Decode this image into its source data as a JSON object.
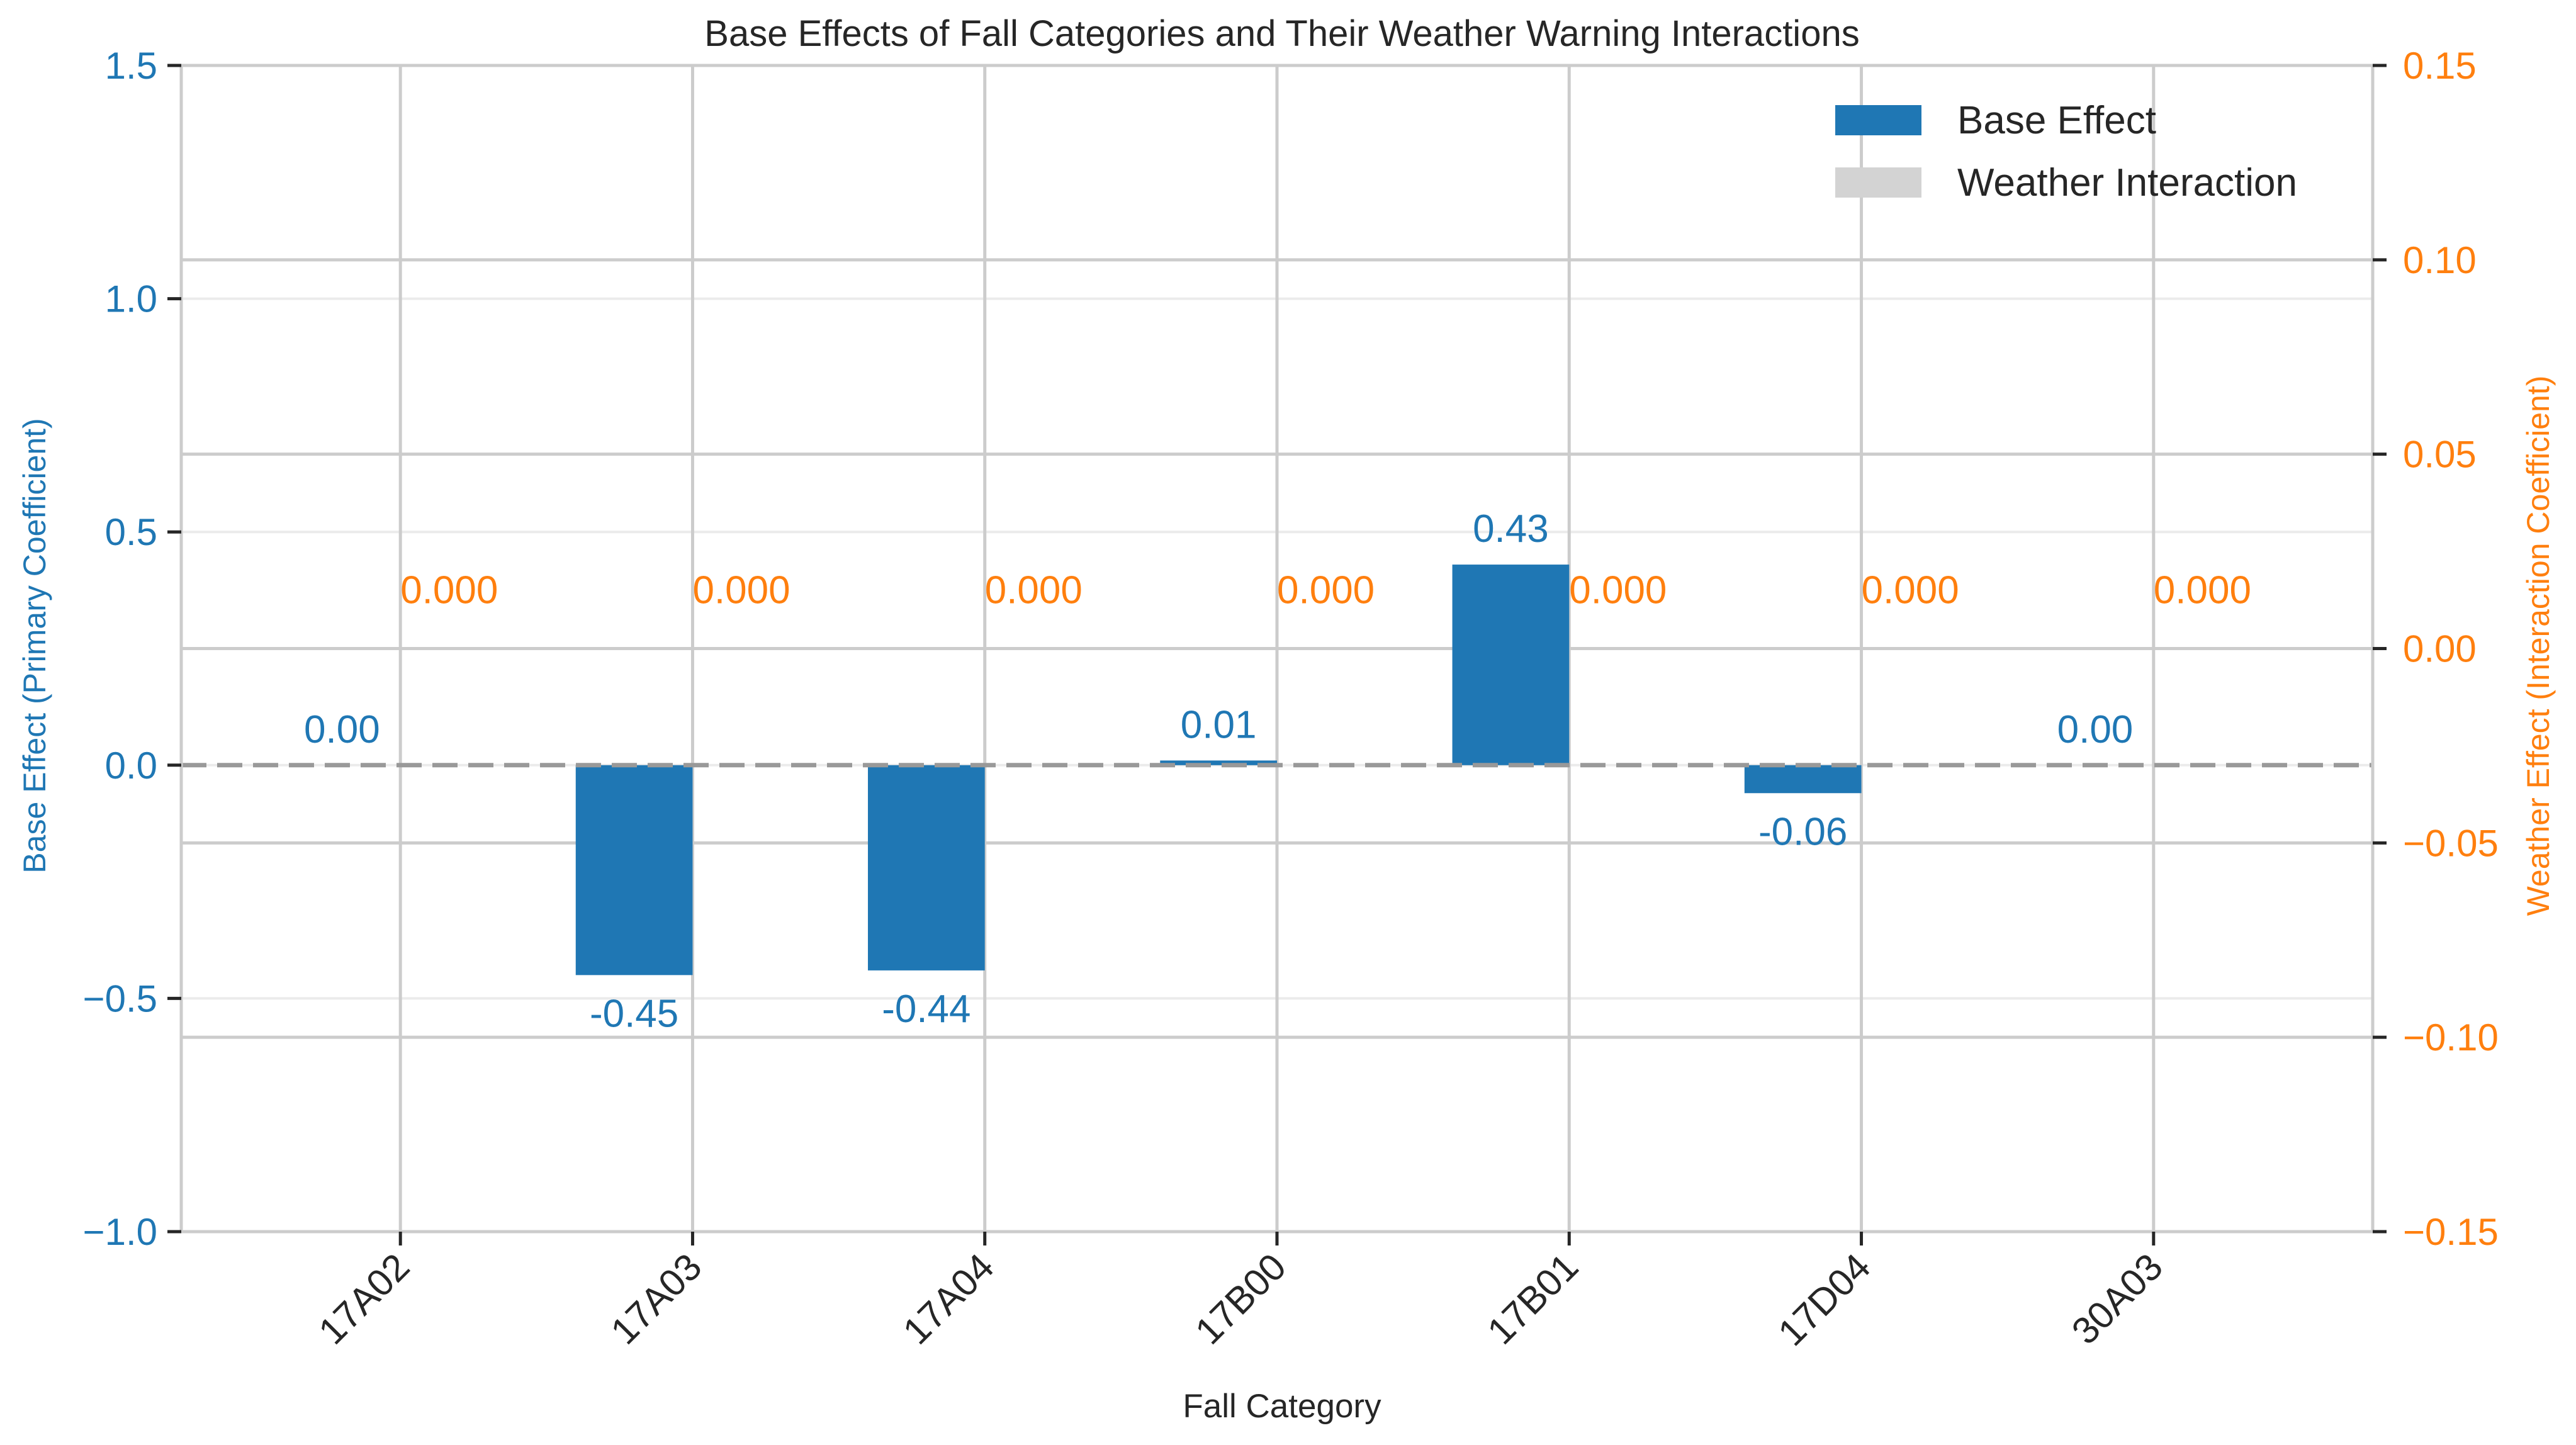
{
  "chart_data": {
    "type": "bar",
    "title": "Base Effects of Fall Categories and Their Weather Warning Interactions",
    "xlabel": "Fall Category",
    "ylabel_left": "Base Effect (Primary Coefficient)",
    "ylabel_right": "Weather Effect (Interaction Coefficient)",
    "categories": [
      "17A02",
      "17A03",
      "17A04",
      "17B00",
      "17B01",
      "17D04",
      "30A03"
    ],
    "series": [
      {
        "name": "Base Effect",
        "axis": "left",
        "color": "#1f77b4",
        "values": [
          0.0,
          -0.45,
          -0.44,
          0.01,
          0.43,
          -0.06,
          0.0
        ],
        "labels": [
          "0.00",
          "-0.45",
          "-0.44",
          "0.01",
          "0.43",
          "-0.06",
          "0.00"
        ]
      },
      {
        "name": "Weather Interaction",
        "axis": "right",
        "color": "#d3d3d3",
        "values": [
          0.0,
          0.0,
          0.0,
          0.0,
          0.0,
          0.0,
          0.0
        ],
        "labels": [
          "0.000",
          "0.000",
          "0.000",
          "0.000",
          "0.000",
          "0.000",
          "0.000"
        ]
      }
    ],
    "ylim_left": [
      -1.0,
      1.5
    ],
    "yticks_left": [
      -1.0,
      -0.5,
      0.0,
      0.5,
      1.0,
      1.5
    ],
    "ytick_labels_left": [
      "−1.0",
      "−0.5",
      "0.0",
      "0.5",
      "1.0",
      "1.5"
    ],
    "ylim_right": [
      -0.15,
      0.15
    ],
    "yticks_right": [
      -0.15,
      -0.1,
      -0.05,
      0.0,
      0.05,
      0.1,
      0.15
    ],
    "ytick_labels_right": [
      "−0.15",
      "−0.10",
      "−0.05",
      "0.00",
      "0.05",
      "0.10",
      "0.15"
    ],
    "reference_line": 0.0,
    "grid": true,
    "legend_position": "top-right",
    "left_axis_color": "#1f77b4",
    "right_axis_color": "#ff7f0e"
  }
}
